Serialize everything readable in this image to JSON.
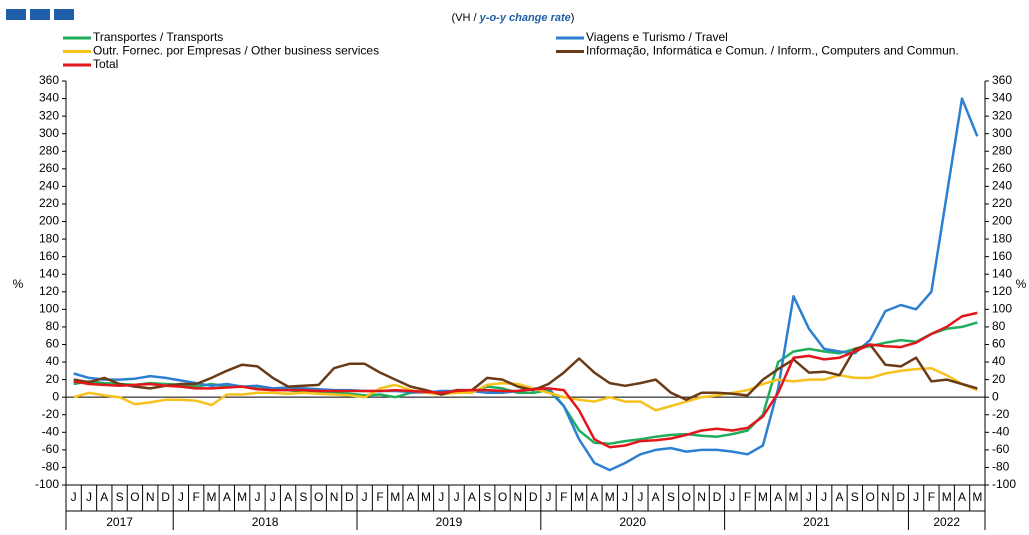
{
  "chart_data": {
    "type": "line",
    "subtitle": [
      "(VH / ",
      "y-o-y change rate",
      ")"
    ],
    "y_label": "%",
    "y2_label": "%",
    "category_groups": [
      {
        "label": "2017",
        "categories": [
          "J",
          "J",
          "A",
          "S",
          "O",
          "N",
          "D"
        ]
      },
      {
        "label": "2018",
        "categories": [
          "J",
          "F",
          "M",
          "A",
          "M",
          "J",
          "J",
          "A",
          "S",
          "O",
          "N",
          "D"
        ]
      },
      {
        "label": "2019",
        "categories": [
          "J",
          "F",
          "M",
          "A",
          "M",
          "J",
          "J",
          "A",
          "S",
          "O",
          "N",
          "D"
        ]
      },
      {
        "label": "2020",
        "categories": [
          "J",
          "F",
          "M",
          "A",
          "M",
          "J",
          "J",
          "A",
          "S",
          "O",
          "N",
          "D"
        ]
      },
      {
        "label": "2021",
        "categories": [
          "J",
          "F",
          "M",
          "A",
          "M",
          "J",
          "J",
          "A",
          "S",
          "O",
          "N",
          "D"
        ]
      },
      {
        "label": "2022",
        "categories": [
          "J",
          "F",
          "M",
          "A",
          "M"
        ]
      }
    ],
    "ylim": [
      -100,
      360
    ],
    "yticks": [
      -100,
      -80,
      -60,
      -40,
      -20,
      0,
      20,
      40,
      60,
      80,
      100,
      120,
      140,
      160,
      180,
      200,
      220,
      240,
      260,
      280,
      300,
      320,
      340,
      360
    ],
    "y2lim": [
      -100,
      360
    ],
    "y2ticks": [
      -100,
      -80,
      -60,
      -40,
      -20,
      0,
      20,
      40,
      60,
      80,
      100,
      120,
      140,
      160,
      180,
      200,
      220,
      240,
      260,
      280,
      300,
      320,
      340,
      360
    ],
    "series": [
      {
        "name": "Transportes / Transports",
        "color": "#1fae5b",
        "values": [
          15,
          18,
          16,
          15,
          14,
          16,
          15,
          14,
          12,
          15,
          12,
          12,
          10,
          9,
          8,
          6,
          6,
          5,
          4,
          2,
          3,
          0,
          5,
          6,
          6,
          7,
          6,
          12,
          10,
          5,
          5,
          8,
          -10,
          -38,
          -52,
          -53,
          -50,
          -48,
          -45,
          -43,
          -42,
          -44,
          -45,
          -42,
          -38,
          -20,
          40,
          52,
          55,
          52,
          50,
          55,
          58,
          62,
          65,
          63,
          72,
          78,
          80,
          85
        ]
      },
      {
        "name": "Viagens e Turismo / Travel",
        "color": "#2c7fd1",
        "values": [
          27,
          22,
          20,
          20,
          21,
          24,
          22,
          19,
          16,
          13,
          15,
          12,
          13,
          10,
          11,
          10,
          9,
          8,
          8,
          7,
          7,
          7,
          6,
          5,
          7,
          7,
          7,
          5,
          5,
          7,
          10,
          10,
          -10,
          -48,
          -75,
          -83,
          -75,
          -65,
          -60,
          -58,
          -62,
          -60,
          -60,
          -62,
          -65,
          -55,
          10,
          115,
          78,
          55,
          52,
          50,
          65,
          98,
          105,
          100,
          120,
          230,
          340,
          297
        ]
      },
      {
        "name": "Outr. Fornec. por Empresas / Other business services",
        "color": "#f7c21b",
        "values": [
          0,
          5,
          2,
          0,
          -8,
          -6,
          -3,
          -3,
          -4,
          -9,
          3,
          3,
          5,
          5,
          4,
          5,
          4,
          3,
          2,
          0,
          10,
          14,
          8,
          5,
          3,
          5,
          5,
          14,
          16,
          15,
          10,
          5,
          0,
          -3,
          -5,
          0,
          -5,
          -5,
          -15,
          -10,
          -5,
          0,
          2,
          5,
          8,
          15,
          20,
          18,
          20,
          20,
          25,
          22,
          22,
          27,
          30,
          32,
          33,
          25,
          15,
          8
        ]
      },
      {
        "name": "Informação, Informática e Comun. / Inform., Computers and Commun.",
        "color": "#6b3a17",
        "values": [
          20,
          17,
          22,
          15,
          12,
          10,
          13,
          15,
          15,
          22,
          30,
          37,
          35,
          22,
          12,
          13,
          14,
          33,
          38,
          38,
          28,
          20,
          12,
          8,
          3,
          8,
          8,
          22,
          20,
          12,
          8,
          15,
          28,
          44,
          28,
          16,
          13,
          16,
          20,
          5,
          -3,
          5,
          5,
          4,
          2,
          20,
          32,
          43,
          28,
          29,
          25,
          55,
          60,
          37,
          35,
          45,
          18,
          20,
          15,
          10
        ]
      },
      {
        "name": "Total",
        "color": "#e3161c",
        "values": [
          18,
          15,
          14,
          13,
          14,
          15,
          13,
          12,
          10,
          10,
          11,
          12,
          9,
          8,
          8,
          8,
          7,
          7,
          7,
          7,
          7,
          8,
          7,
          6,
          5,
          7,
          8,
          8,
          7,
          7,
          9,
          10,
          8,
          -15,
          -48,
          -57,
          -55,
          -50,
          -49,
          -47,
          -43,
          -38,
          -36,
          -38,
          -35,
          -22,
          5,
          45,
          47,
          43,
          45,
          52,
          60,
          58,
          57,
          62,
          72,
          80,
          92,
          96
        ]
      }
    ]
  }
}
